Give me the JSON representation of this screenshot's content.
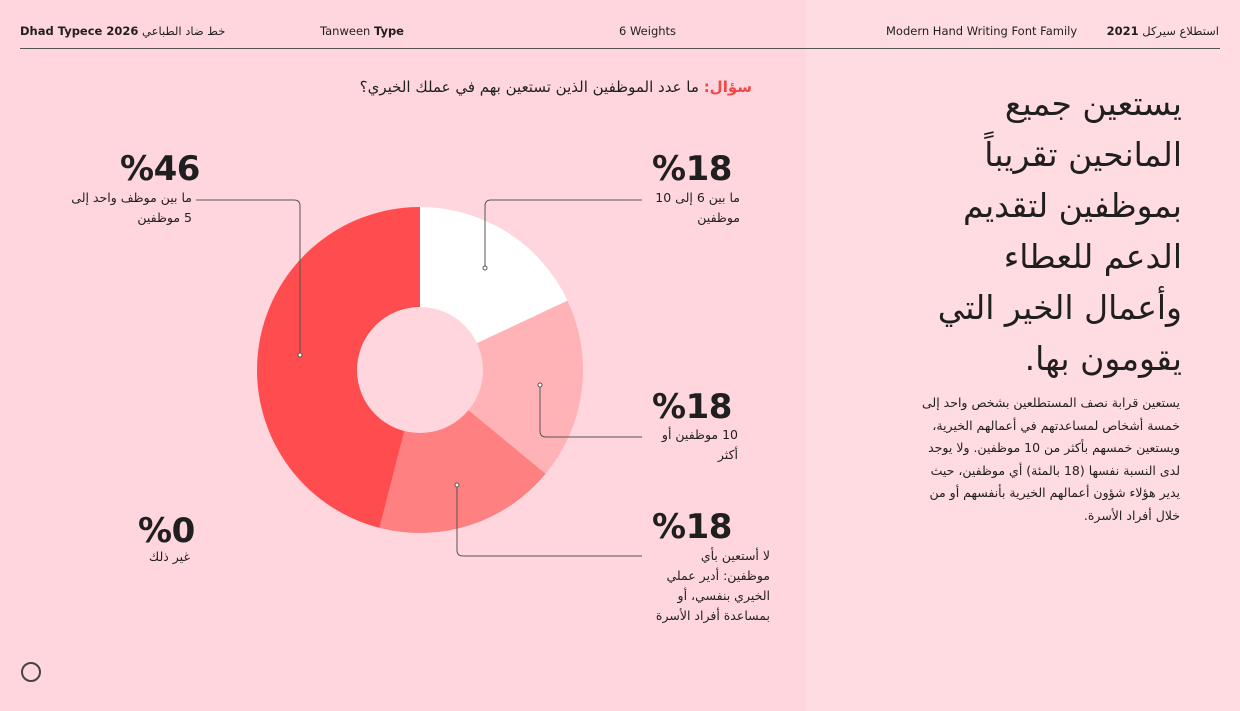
{
  "header": {
    "left_title": "خط ضاد الطباعي",
    "left_brand": "Dhad Typece 2026",
    "studio_prefix": "Tanween",
    "studio_suffix": "Type",
    "weights": "6 Weights",
    "family": "Modern Hand Writing Font Family",
    "survey_title": "استطلاع سيركل",
    "survey_year": "2021"
  },
  "question": {
    "label": "سؤال:",
    "text": " ما عدد الموظفين الذين تستعين بهم في عملك الخيري؟"
  },
  "headline": "يستعين جميع المانحين تقريباً بموظفين لتقديم الدعم للعطاء وأعمال الخير التي يقومون بها.",
  "paragraph": "يستعين قرابة نصف المستطلعين بشخص واحد إلى خمسة أشخاص لمساعدتهم في أعمالهم الخيرية، ويستعين خمسهم بأكثر من 10 موظفين. ولا يوجد لدى النسبة نفسها (18 بالمئة) أي موظفين، حيث يدير هؤلاء شؤون أعمالهم الخيرية بأنفسهم أو من خلال أفراد الأسرة.",
  "chart_data": {
    "type": "pie",
    "donut": true,
    "slices": [
      {
        "label": "ما بين 6 إلى 10 موظفين",
        "value": 18,
        "value_text": "%18",
        "color": "#ffffff"
      },
      {
        "label": "10 موظفين أو أكثر",
        "value": 18,
        "value_text": "%18",
        "color": "#ffb3b6"
      },
      {
        "label": "لا أستعين بأي موظفين: أدير عملي الخيري بنفسي، أو بمساعدة أفراد الأسرة",
        "value": 18,
        "value_text": "%18",
        "color": "#ff8080"
      },
      {
        "label": "ما بين موظف واحد إلى 5 موظفين",
        "value": 46,
        "value_text": "%46",
        "color": "#ff4d4f"
      },
      {
        "label": "غير ذلك",
        "value": 0,
        "value_text": "%0",
        "color": "#ff4d4f"
      }
    ],
    "hole_color": "#ffd6de",
    "leader_color": "#555555"
  }
}
